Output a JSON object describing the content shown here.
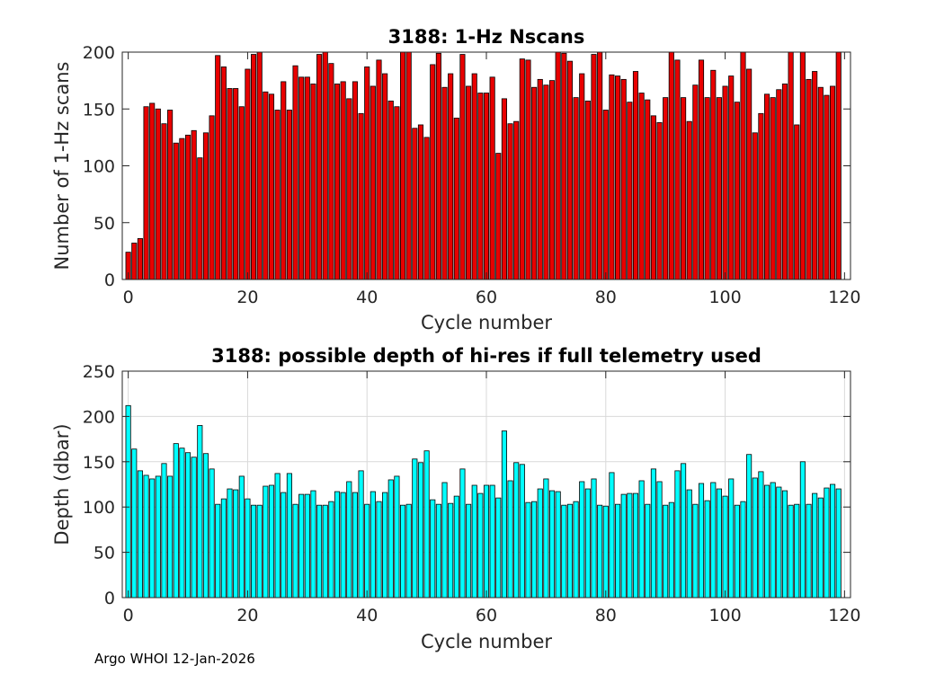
{
  "footer": "Argo WHOI 12-Jan-2026",
  "colors": {
    "chart1_bar": "#e80000",
    "chart2_bar": "#00ffff",
    "grid": "#d9d9d9",
    "edge": "#000000"
  },
  "chart_data": [
    {
      "type": "bar",
      "title": "3188: 1-Hz Nscans",
      "xlabel": "Cycle number",
      "ylabel": "Number of 1-Hz scans",
      "xlim": [
        -1,
        121
      ],
      "ylim": [
        0,
        200
      ],
      "xticks": [
        0,
        20,
        40,
        60,
        80,
        100,
        120
      ],
      "yticks": [
        0,
        50,
        100,
        150,
        200
      ],
      "grid": false,
      "bar_color": "#e80000",
      "x": [
        0,
        1,
        2,
        3,
        4,
        5,
        6,
        7,
        8,
        9,
        10,
        11,
        12,
        13,
        14,
        15,
        16,
        17,
        18,
        19,
        20,
        21,
        22,
        23,
        24,
        25,
        26,
        27,
        28,
        29,
        30,
        31,
        32,
        33,
        34,
        35,
        36,
        37,
        38,
        39,
        40,
        41,
        42,
        43,
        44,
        45,
        46,
        47,
        48,
        49,
        50,
        51,
        52,
        53,
        54,
        55,
        56,
        57,
        58,
        59,
        60,
        61,
        62,
        63,
        64,
        65,
        66,
        67,
        68,
        69,
        70,
        71,
        72,
        73,
        74,
        75,
        76,
        77,
        78,
        79,
        80,
        81,
        82,
        83,
        84,
        85,
        86,
        87,
        88,
        89,
        90,
        91,
        92,
        93,
        94,
        95,
        96,
        97,
        98,
        99,
        100,
        101,
        102,
        103,
        104,
        105,
        106,
        107,
        108,
        109,
        110,
        111,
        112,
        113,
        114,
        115,
        116,
        117,
        118,
        119
      ],
      "values": [
        24,
        32,
        36,
        152,
        155,
        150,
        137,
        149,
        120,
        124,
        127,
        131,
        107,
        129,
        144,
        197,
        187,
        168,
        168,
        152,
        185,
        198,
        200,
        165,
        163,
        149,
        174,
        149,
        188,
        178,
        178,
        172,
        198,
        200,
        190,
        172,
        174,
        159,
        174,
        146,
        187,
        170,
        193,
        181,
        157,
        152,
        200,
        200,
        133,
        136,
        125,
        189,
        199,
        169,
        181,
        142,
        198,
        170,
        181,
        164,
        164,
        178,
        111,
        159,
        137,
        139,
        194,
        193,
        169,
        176,
        171,
        175,
        200,
        199,
        192,
        160,
        181,
        157,
        198,
        200,
        149,
        180,
        179,
        176,
        156,
        183,
        164,
        158,
        144,
        138,
        160,
        200,
        193,
        160,
        139,
        171,
        193,
        160,
        184,
        160,
        170,
        179,
        156,
        200,
        185,
        129,
        146,
        163,
        160,
        167,
        172,
        200,
        136,
        200,
        176,
        183,
        169,
        162,
        170,
        200
      ]
    },
    {
      "type": "bar",
      "title": "3188: possible depth of hi-res if full telemetry used",
      "xlabel": "Cycle number",
      "ylabel": "Depth (dbar)",
      "xlim": [
        -1,
        121
      ],
      "ylim": [
        0,
        250
      ],
      "xticks": [
        0,
        20,
        40,
        60,
        80,
        100,
        120
      ],
      "yticks": [
        0,
        50,
        100,
        150,
        200,
        250
      ],
      "grid": true,
      "bar_color": "#00ffff",
      "x": [
        0,
        1,
        2,
        3,
        4,
        5,
        6,
        7,
        8,
        9,
        10,
        11,
        12,
        13,
        14,
        15,
        16,
        17,
        18,
        19,
        20,
        21,
        22,
        23,
        24,
        25,
        26,
        27,
        28,
        29,
        30,
        31,
        32,
        33,
        34,
        35,
        36,
        37,
        38,
        39,
        40,
        41,
        42,
        43,
        44,
        45,
        46,
        47,
        48,
        49,
        50,
        51,
        52,
        53,
        54,
        55,
        56,
        57,
        58,
        59,
        60,
        61,
        62,
        63,
        64,
        65,
        66,
        67,
        68,
        69,
        70,
        71,
        72,
        73,
        74,
        75,
        76,
        77,
        78,
        79,
        80,
        81,
        82,
        83,
        84,
        85,
        86,
        87,
        88,
        89,
        90,
        91,
        92,
        93,
        94,
        95,
        96,
        97,
        98,
        99,
        100,
        101,
        102,
        103,
        104,
        105,
        106,
        107,
        108,
        109,
        110,
        111,
        112,
        113,
        114,
        115,
        116,
        117,
        118,
        119
      ],
      "values": [
        212,
        164,
        140,
        135,
        131,
        134,
        148,
        134,
        170,
        165,
        160,
        155,
        190,
        159,
        142,
        103,
        109,
        120,
        119,
        134,
        109,
        102,
        102,
        123,
        124,
        137,
        116,
        137,
        103,
        114,
        114,
        118,
        102,
        102,
        106,
        117,
        116,
        128,
        116,
        140,
        103,
        117,
        106,
        116,
        130,
        134,
        102,
        103,
        153,
        149,
        162,
        108,
        103,
        127,
        104,
        112,
        142,
        103,
        124,
        115,
        124,
        124,
        110,
        184,
        129,
        149,
        147,
        105,
        106,
        120,
        131,
        118,
        117,
        102,
        103,
        106,
        128,
        120,
        131,
        102,
        101,
        138,
        103,
        114,
        115,
        115,
        129,
        103,
        142,
        128,
        102,
        105,
        140,
        148,
        119,
        103,
        126,
        107,
        127,
        120,
        112,
        131,
        102,
        106,
        158,
        132,
        139,
        124,
        127,
        122,
        118,
        102,
        103,
        150,
        103,
        115,
        110,
        121,
        125,
        120
      ]
    }
  ]
}
